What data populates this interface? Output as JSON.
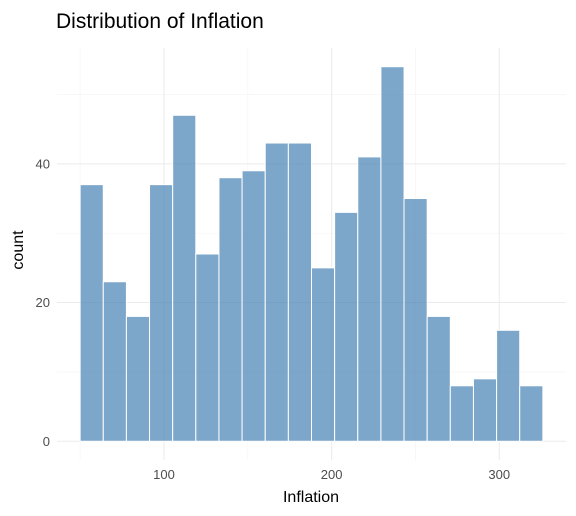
{
  "chart_data": {
    "type": "bar",
    "title": "Distribution of Inflation",
    "xlabel": "Inflation",
    "ylabel": "count",
    "bin_width": 13.8,
    "bins": [
      {
        "x0": 50.0,
        "x1": 63.8,
        "count": 37
      },
      {
        "x0": 63.8,
        "x1": 77.6,
        "count": 23
      },
      {
        "x0": 77.6,
        "x1": 91.4,
        "count": 18
      },
      {
        "x0": 91.4,
        "x1": 105.2,
        "count": 37
      },
      {
        "x0": 105.2,
        "x1": 119.0,
        "count": 47
      },
      {
        "x0": 119.0,
        "x1": 132.8,
        "count": 27
      },
      {
        "x0": 132.8,
        "x1": 146.6,
        "count": 38
      },
      {
        "x0": 146.6,
        "x1": 160.4,
        "count": 39
      },
      {
        "x0": 160.4,
        "x1": 174.2,
        "count": 43
      },
      {
        "x0": 174.2,
        "x1": 188.0,
        "count": 43
      },
      {
        "x0": 188.0,
        "x1": 201.8,
        "count": 25
      },
      {
        "x0": 201.8,
        "x1": 215.6,
        "count": 33
      },
      {
        "x0": 215.6,
        "x1": 229.4,
        "count": 41
      },
      {
        "x0": 229.4,
        "x1": 243.2,
        "count": 54
      },
      {
        "x0": 243.2,
        "x1": 257.0,
        "count": 35
      },
      {
        "x0": 257.0,
        "x1": 270.8,
        "count": 18
      },
      {
        "x0": 270.8,
        "x1": 284.6,
        "count": 8
      },
      {
        "x0": 284.6,
        "x1": 298.4,
        "count": 9
      },
      {
        "x0": 298.4,
        "x1": 312.2,
        "count": 16
      },
      {
        "x0": 312.2,
        "x1": 326.0,
        "count": 8
      }
    ],
    "xlim": [
      36.2,
      339.8
    ],
    "ylim": [
      -2.7,
      56.7
    ],
    "x_ticks": [
      100,
      200,
      300
    ],
    "x_minor": [
      50,
      150,
      250
    ],
    "y_ticks": [
      0,
      20,
      40
    ],
    "y_minor": [
      10,
      30,
      50
    ],
    "grid": true,
    "legend": "none",
    "bar_color": "#4682b4",
    "bar_alpha": 0.7,
    "bar_outline": "#ffffff"
  }
}
